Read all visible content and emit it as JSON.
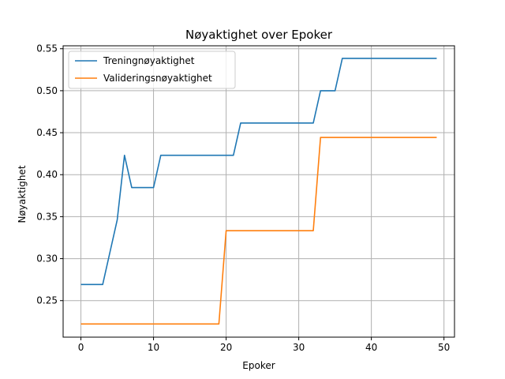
{
  "chart_data": {
    "type": "line",
    "title": "Nøyaktighet over Epoker",
    "xlabel": "Epoker",
    "ylabel": "Nøyaktighet",
    "xlim": [
      -2.45,
      51.45
    ],
    "ylim": [
      0.2065,
      0.5535
    ],
    "xticks": [
      0,
      10,
      20,
      30,
      40,
      50
    ],
    "yticks": [
      0.25,
      0.3,
      0.35,
      0.4,
      0.45,
      0.5,
      0.55
    ],
    "ytick_labels": [
      "0.25",
      "0.30",
      "0.35",
      "0.40",
      "0.45",
      "0.50",
      "0.55"
    ],
    "grid": true,
    "legend_position": "top-left",
    "x": [
      0,
      1,
      2,
      3,
      4,
      5,
      6,
      7,
      8,
      9,
      10,
      11,
      12,
      13,
      14,
      15,
      16,
      17,
      18,
      19,
      20,
      21,
      22,
      23,
      24,
      25,
      26,
      27,
      28,
      29,
      30,
      31,
      32,
      33,
      34,
      35,
      36,
      37,
      38,
      39,
      40,
      41,
      42,
      43,
      44,
      45,
      46,
      47,
      48,
      49
    ],
    "series": [
      {
        "name": "Treningnøyaktighet",
        "color": "#1f77b4",
        "values": [
          0.2692,
          0.2692,
          0.2692,
          0.2692,
          0.3077,
          0.3462,
          0.4231,
          0.3846,
          0.3846,
          0.3846,
          0.3846,
          0.4231,
          0.4231,
          0.4231,
          0.4231,
          0.4231,
          0.4231,
          0.4231,
          0.4231,
          0.4231,
          0.4231,
          0.4231,
          0.4615,
          0.4615,
          0.4615,
          0.4615,
          0.4615,
          0.4615,
          0.4615,
          0.4615,
          0.4615,
          0.4615,
          0.4615,
          0.5,
          0.5,
          0.5,
          0.5385,
          0.5385,
          0.5385,
          0.5385,
          0.5385,
          0.5385,
          0.5385,
          0.5385,
          0.5385,
          0.5385,
          0.5385,
          0.5385,
          0.5385,
          0.5385
        ]
      },
      {
        "name": "Valideringsnøyaktighet",
        "color": "#ff7f0e",
        "values": [
          0.2222,
          0.2222,
          0.2222,
          0.2222,
          0.2222,
          0.2222,
          0.2222,
          0.2222,
          0.2222,
          0.2222,
          0.2222,
          0.2222,
          0.2222,
          0.2222,
          0.2222,
          0.2222,
          0.2222,
          0.2222,
          0.2222,
          0.2222,
          0.3333,
          0.3333,
          0.3333,
          0.3333,
          0.3333,
          0.3333,
          0.3333,
          0.3333,
          0.3333,
          0.3333,
          0.3333,
          0.3333,
          0.3333,
          0.4444,
          0.4444,
          0.4444,
          0.4444,
          0.4444,
          0.4444,
          0.4444,
          0.4444,
          0.4444,
          0.4444,
          0.4444,
          0.4444,
          0.4444,
          0.4444,
          0.4444,
          0.4444,
          0.4444
        ]
      }
    ]
  }
}
